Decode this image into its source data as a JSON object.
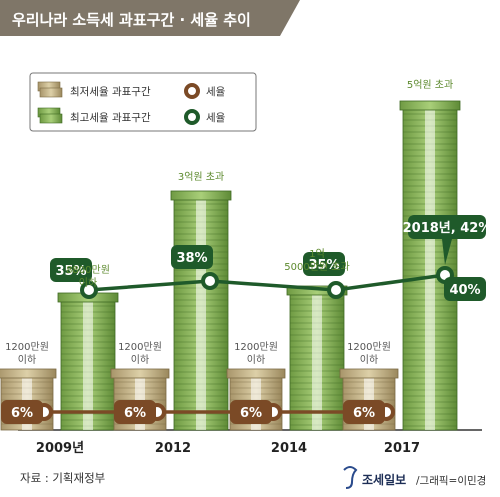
{
  "header": {
    "title": "우리나라 소득세 과표구간 · 세율 추이"
  },
  "legend": {
    "lowest_bracket": "최저세율 과표구간",
    "highest_bracket": "최고세율 과표구간",
    "rate_low": "세율",
    "rate_high": "세율"
  },
  "colors": {
    "header_bg": "#7f7668",
    "lowest_line": "#7b4a26",
    "highest_line": "#1f5a2a",
    "bill_green": "#9bc06a",
    "bill_tan": "#c8b88a",
    "label_green": "#5d8a2e"
  },
  "chart_data": {
    "type": "bar+line",
    "categories": [
      "2009년",
      "2012",
      "2014",
      "2017"
    ],
    "lowest_bracket_labels": [
      "1200만원\n이하",
      "1200만원\n이하",
      "1200만원\n이하",
      "1200만원\n이하"
    ],
    "highest_bracket_labels": [
      "8800만원\n이하",
      "3억원 초과",
      "1억\n5000만원 초과",
      "5억원 초과"
    ],
    "lowest_bracket_values_manwon": [
      1200,
      1200,
      1200,
      1200
    ],
    "highest_bracket_values_manwon": [
      8800,
      30000,
      15000,
      50000
    ],
    "series": [
      {
        "name": "세율",
        "values": [
          6,
          6,
          6,
          6
        ],
        "labels": [
          "6%",
          "6%",
          "6%",
          "6%"
        ]
      },
      {
        "name": "세율",
        "values": [
          35,
          38,
          35,
          40
        ],
        "labels": [
          "35%",
          "38%",
          "35%",
          "40%"
        ]
      }
    ],
    "annotation": "2018년, 42%"
  },
  "footer": {
    "source": "자료 : 기획재정부",
    "brand": "조세일보",
    "credit": "/그래픽=이민경"
  }
}
